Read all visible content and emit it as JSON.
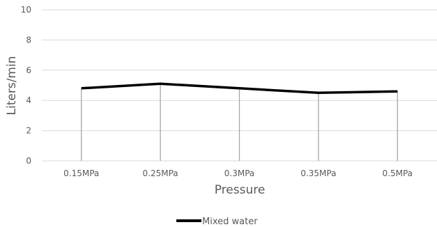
{
  "chart_data": {
    "type": "line",
    "categories": [
      "0.15MPa",
      "0.25MPa",
      "0.3MPa",
      "0.35MPa",
      "0.5MPa"
    ],
    "series": [
      {
        "name": "Mixed water",
        "values": [
          4.8,
          5.1,
          4.8,
          4.5,
          4.6
        ]
      }
    ],
    "title": "",
    "xlabel": "Pressure",
    "ylabel": "Liters/min",
    "ylim": [
      0,
      10
    ],
    "yticks": [
      0,
      2,
      4,
      6,
      8,
      10
    ],
    "grid": "horizontal",
    "drop_lines": true,
    "legend_position": "bottom",
    "colors": {
      "series": "#000000",
      "gridline": "#d9d9d9",
      "drop_line": "#a6a6a6",
      "text": "#595959"
    }
  }
}
